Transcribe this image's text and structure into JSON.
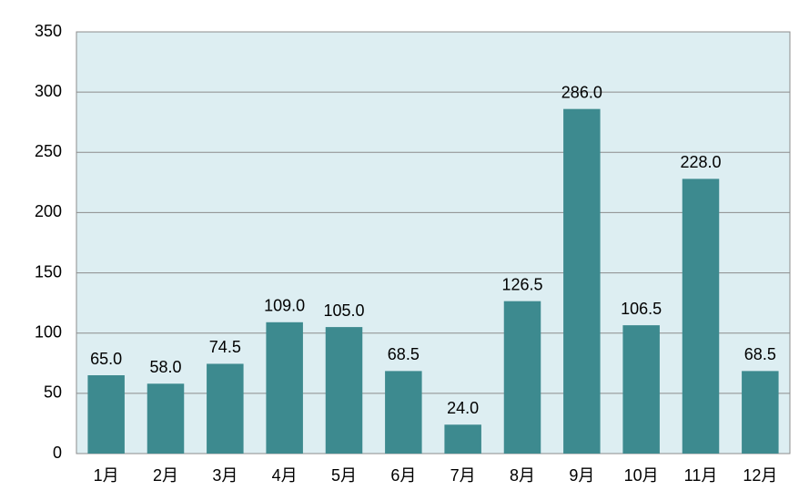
{
  "chart_data": {
    "type": "bar",
    "categories": [
      "1月",
      "2月",
      "3月",
      "4月",
      "5月",
      "6月",
      "7月",
      "8月",
      "9月",
      "10月",
      "11月",
      "12月"
    ],
    "values": [
      65,
      58,
      74.5,
      109,
      105,
      68.5,
      24,
      126.5,
      286,
      106.5,
      228,
      68.5
    ],
    "value_labels": [
      "65.0",
      "58.0",
      "74.5",
      "109.0",
      "105.0",
      "68.5",
      "24.0",
      "126.5",
      "286.0",
      "106.5",
      "228.0",
      "68.5"
    ],
    "color": "#3d8a8f",
    "ylim": [
      0,
      350
    ],
    "yticks": [
      0,
      50,
      100,
      150,
      200,
      250,
      300,
      350
    ],
    "grid": true
  }
}
